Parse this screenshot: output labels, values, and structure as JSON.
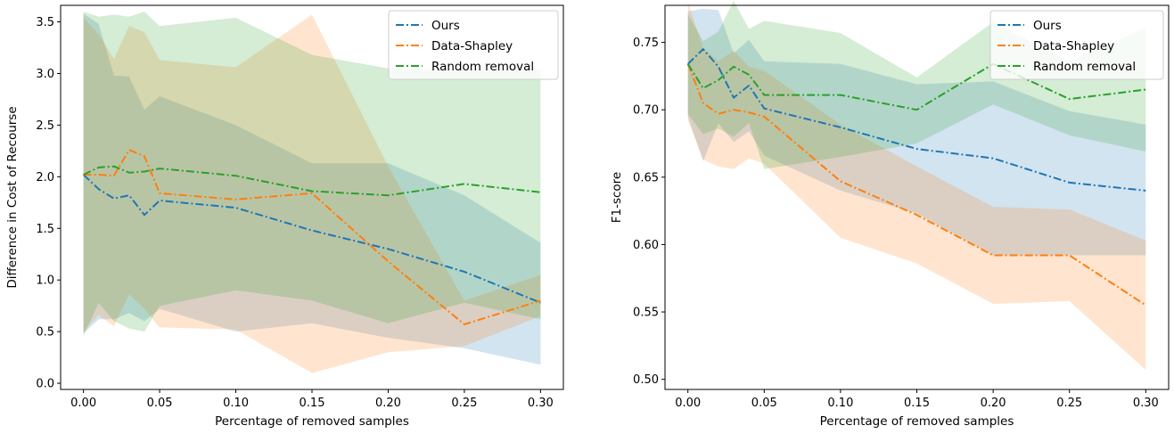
{
  "chart_data": [
    {
      "type": "line",
      "title": "",
      "xlabel": "Percentage of removed samples",
      "ylabel": "Difference in Cost of Recourse",
      "xlim": [
        -0.015,
        0.315
      ],
      "ylim": [
        -0.06,
        3.66
      ],
      "xticks": [
        0.0,
        0.05,
        0.1,
        0.15,
        0.2,
        0.25,
        0.3
      ],
      "xtick_labels": [
        "0.00",
        "0.05",
        "0.10",
        "0.15",
        "0.20",
        "0.25",
        "0.30"
      ],
      "yticks": [
        0.0,
        0.5,
        1.0,
        1.5,
        2.0,
        2.5,
        3.0,
        3.5
      ],
      "ytick_labels": [
        "0.0",
        "0.5",
        "1.0",
        "1.5",
        "2.0",
        "2.5",
        "3.0",
        "3.5"
      ],
      "legend_position": "top-right",
      "grid": false,
      "x": [
        0.0,
        0.01,
        0.02,
        0.03,
        0.04,
        0.05,
        0.1,
        0.15,
        0.2,
        0.25,
        0.3
      ],
      "series": [
        {
          "name": "Ours",
          "color": "#1f77b4",
          "values": [
            2.02,
            1.88,
            1.79,
            1.82,
            1.63,
            1.77,
            1.7,
            1.48,
            1.3,
            1.08,
            0.78
          ],
          "lower": [
            0.48,
            0.62,
            0.62,
            0.68,
            0.6,
            0.72,
            0.5,
            0.58,
            0.44,
            0.34,
            0.18
          ],
          "upper": [
            3.58,
            3.48,
            2.98,
            2.97,
            2.65,
            2.78,
            2.5,
            2.13,
            2.13,
            1.82,
            1.36
          ]
        },
        {
          "name": "Data-Shapley",
          "color": "#ff7f0e",
          "values": [
            2.02,
            2.02,
            2.01,
            2.26,
            2.2,
            1.84,
            1.78,
            1.84,
            1.18,
            0.57,
            0.8
          ],
          "lower": [
            0.5,
            0.66,
            0.55,
            0.86,
            0.72,
            0.54,
            0.52,
            0.1,
            0.3,
            0.36,
            0.65
          ],
          "upper": [
            3.54,
            3.38,
            3.14,
            3.46,
            3.4,
            3.13,
            3.06,
            3.57,
            2.1,
            0.8,
            1.05
          ]
        },
        {
          "name": "Random removal",
          "color": "#2ca02c",
          "values": [
            2.02,
            2.09,
            2.1,
            2.04,
            2.05,
            2.08,
            2.01,
            1.86,
            1.82,
            1.93,
            1.85
          ],
          "lower": [
            0.46,
            0.78,
            0.6,
            0.53,
            0.5,
            0.75,
            0.9,
            0.8,
            0.58,
            0.78,
            0.62
          ],
          "upper": [
            3.6,
            3.55,
            3.57,
            3.55,
            3.6,
            3.46,
            3.54,
            3.18,
            3.05,
            3.04,
            3.04
          ]
        }
      ]
    },
    {
      "type": "line",
      "title": "",
      "xlabel": "Percentage of removed samples",
      "ylabel": "F1-score",
      "xlim": [
        -0.015,
        0.315
      ],
      "ylim": [
        0.4925,
        0.7775
      ],
      "xticks": [
        0.0,
        0.05,
        0.1,
        0.15,
        0.2,
        0.25,
        0.3
      ],
      "xtick_labels": [
        "0.00",
        "0.05",
        "0.10",
        "0.15",
        "0.20",
        "0.25",
        "0.30"
      ],
      "yticks": [
        0.5,
        0.55,
        0.6,
        0.65,
        0.7,
        0.75
      ],
      "ytick_labels": [
        "0.50",
        "0.55",
        "0.60",
        "0.65",
        "0.70",
        "0.75"
      ],
      "legend_position": "top-right",
      "grid": false,
      "x": [
        0.0,
        0.01,
        0.02,
        0.03,
        0.04,
        0.05,
        0.1,
        0.15,
        0.2,
        0.25,
        0.3
      ],
      "series": [
        {
          "name": "Ours",
          "color": "#1f77b4",
          "values": [
            0.734,
            0.745,
            0.732,
            0.709,
            0.718,
            0.701,
            0.687,
            0.671,
            0.664,
            0.646,
            0.64
          ],
          "lower": [
            0.695,
            0.662,
            0.69,
            0.676,
            0.684,
            0.666,
            0.64,
            0.623,
            0.592,
            0.592,
            0.592
          ],
          "upper": [
            0.773,
            0.775,
            0.774,
            0.742,
            0.752,
            0.736,
            0.734,
            0.719,
            0.721,
            0.699,
            0.689
          ]
        },
        {
          "name": "Data-Shapley",
          "color": "#ff7f0e",
          "values": [
            0.734,
            0.705,
            0.697,
            0.7,
            0.698,
            0.695,
            0.647,
            0.622,
            0.592,
            0.592,
            0.555
          ],
          "lower": [
            0.692,
            0.663,
            0.658,
            0.656,
            0.664,
            0.66,
            0.605,
            0.586,
            0.556,
            0.558,
            0.507
          ],
          "upper": [
            0.78,
            0.746,
            0.736,
            0.744,
            0.732,
            0.729,
            0.689,
            0.658,
            0.628,
            0.626,
            0.603
          ]
        },
        {
          "name": "Random removal",
          "color": "#2ca02c",
          "values": [
            0.734,
            0.716,
            0.722,
            0.732,
            0.726,
            0.711,
            0.711,
            0.7,
            0.734,
            0.708,
            0.715
          ],
          "lower": [
            0.697,
            0.682,
            0.686,
            0.68,
            0.69,
            0.656,
            0.665,
            0.675,
            0.704,
            0.681,
            0.669
          ],
          "upper": [
            0.771,
            0.751,
            0.758,
            0.781,
            0.76,
            0.766,
            0.757,
            0.724,
            0.765,
            0.736,
            0.761
          ]
        }
      ]
    }
  ]
}
